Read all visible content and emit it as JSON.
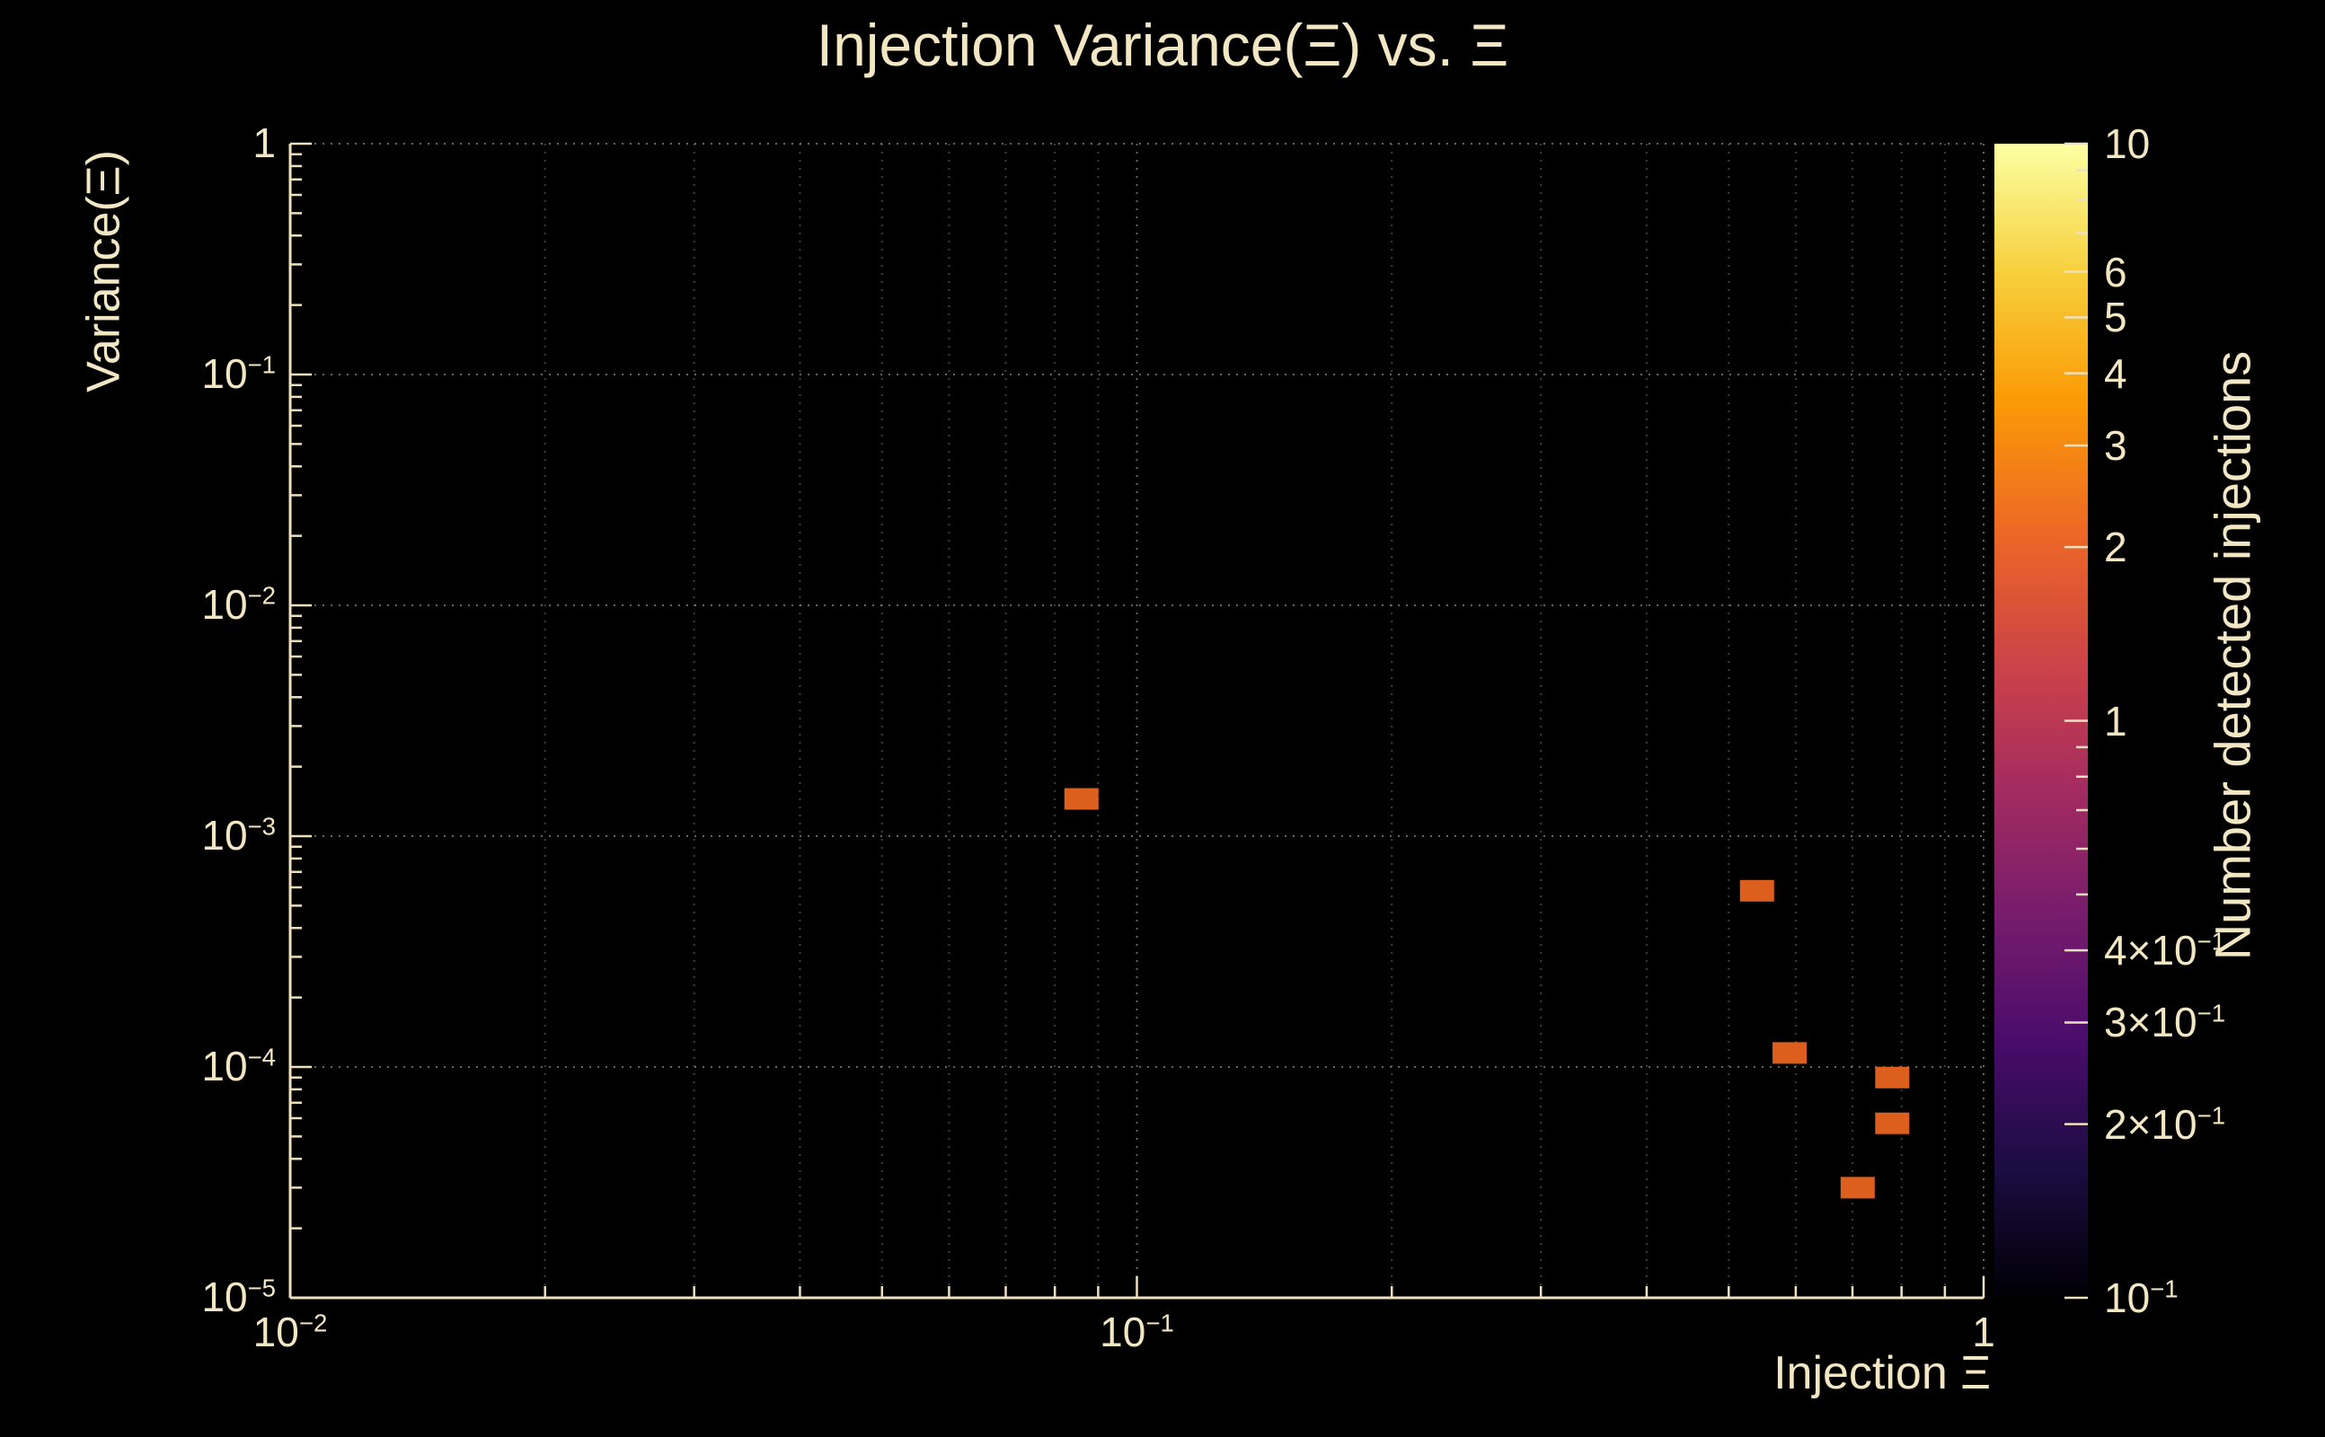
{
  "title": "Injection Variance(Ξ) vs. Ξ",
  "colors": {
    "background": "#000000",
    "text": "#f3e6c2",
    "axis": "#eee0bd",
    "grid": "#cfc9b6",
    "marker": "#dc5f1e"
  },
  "chart_data": {
    "type": "scatter",
    "title": "Injection Variance(Ξ) vs. Ξ",
    "xlabel": "Injection Ξ",
    "ylabel": "Variance(Ξ)",
    "x_scale": "log",
    "y_scale": "log",
    "xlim": [
      0.01,
      1
    ],
    "ylim": [
      1e-05,
      1
    ],
    "grid": "dotted; vertical lines at all log ticks, horizontal lines at decades",
    "x_ticks": [
      {
        "v": 0.01,
        "label": "10^−2"
      },
      {
        "v": 0.1,
        "label": "10^−1"
      },
      {
        "v": 1,
        "label": "1"
      }
    ],
    "y_ticks": [
      {
        "v": 1,
        "label": "1"
      },
      {
        "v": 0.1,
        "label": "10^−1"
      },
      {
        "v": 0.01,
        "label": "10^−2"
      },
      {
        "v": 0.001,
        "label": "10^−3"
      },
      {
        "v": 0.0001,
        "label": "10^−4"
      },
      {
        "v": 1e-05,
        "label": "10^−5"
      }
    ],
    "points": [
      {
        "x": 0.086,
        "y": 0.00145,
        "value": 1
      },
      {
        "x": 0.54,
        "y": 0.00058,
        "value": 1
      },
      {
        "x": 0.59,
        "y": 0.000115,
        "value": 1
      },
      {
        "x": 0.78,
        "y": 9e-05,
        "value": 1
      },
      {
        "x": 0.78,
        "y": 5.7e-05,
        "value": 1
      },
      {
        "x": 0.71,
        "y": 3e-05,
        "value": 1
      }
    ],
    "marker": {
      "shape": "square",
      "color": "#dc5f1e",
      "width": 38,
      "height": 24
    },
    "colorbar": {
      "label": "Number detected injections",
      "scale": "log",
      "range": [
        0.1,
        10
      ],
      "ticks": [
        {
          "v": 10,
          "label": "10"
        },
        {
          "v": 6,
          "label": "6"
        },
        {
          "v": 5,
          "label": "5"
        },
        {
          "v": 4,
          "label": "4"
        },
        {
          "v": 3,
          "label": "3"
        },
        {
          "v": 2,
          "label": "2"
        },
        {
          "v": 1,
          "label": "1"
        },
        {
          "v": 0.4,
          "label": "4×10^−1"
        },
        {
          "v": 0.3,
          "label": "3×10^−1"
        },
        {
          "v": 0.2,
          "label": "2×10^−1"
        },
        {
          "v": 0.1,
          "label": "10^−1"
        }
      ],
      "minor_ticks": [
        7,
        8,
        9,
        0.5,
        0.6,
        0.7,
        0.8,
        0.9
      ],
      "gradient": [
        "#000004",
        "#1b0c41",
        "#4a0c6b",
        "#781c6d",
        "#a52c60",
        "#cf4446",
        "#ed6925",
        "#fb9b06",
        "#f7d03c",
        "#fcffa4"
      ]
    }
  }
}
